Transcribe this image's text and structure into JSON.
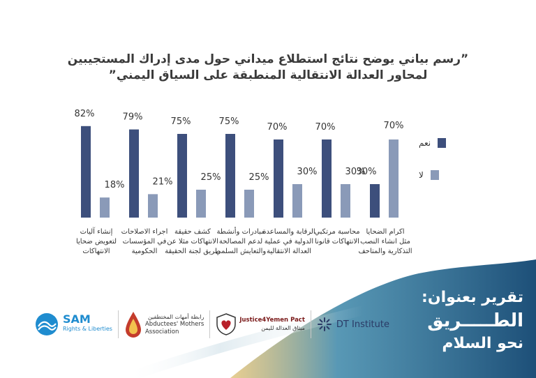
{
  "title_lines": [
    "”رسم بياني يوضح نتائج استطلاع ميداني حول مدى إدراك المستجيبين",
    "لمحاور العدالة الانتقالية المنطبقة على السياق اليمني”"
  ],
  "chart_data": {
    "type": "bar",
    "categories": [
      [
        "إنشاء آليات",
        "لتعويض ضحايا",
        "الانتهاكات"
      ],
      [
        "اجراء الاصلاحات",
        "في المؤسسات",
        "الحكومية"
      ],
      [
        "كشف حقيقة",
        "الانتهاكات مثلا عن",
        "طريق لجنة الحقيقة"
      ],
      [
        "مبادرات وأنشطة",
        "لدعم المصالحة",
        "والتعايش السلمي"
      ],
      [
        "الرقابة والمساعدة",
        "الدولية في عملية",
        "العدالة الانتقالية"
      ],
      [
        "محاسبة مرتكبي",
        "الانتهاكات قانونا"
      ],
      [
        "اكرام الضحايا",
        "مثل انشاء النصب",
        "التذكارية والمتاحف"
      ]
    ],
    "series": [
      {
        "name": "نعم",
        "values": [
          82,
          79,
          75,
          75,
          70,
          70,
          30
        ],
        "labels": [
          "82%",
          "79%",
          "75%",
          "75%",
          "70%",
          "70%",
          "30%"
        ],
        "color": "#3d4f7c"
      },
      {
        "name": "لا",
        "values": [
          18,
          21,
          25,
          25,
          30,
          30,
          70
        ],
        "labels": [
          "18%",
          "21%",
          "25%",
          "25%",
          "30%",
          "30%",
          "70%"
        ],
        "color": "#8a9ab8"
      }
    ],
    "ylim": [
      0,
      100
    ],
    "legend_position": "right"
  },
  "report": {
    "line1": "تقرير بعنوان:",
    "line2": "الطـــــريق",
    "line3": "نحو السلام"
  },
  "logos": {
    "sam": {
      "name": "SAM",
      "tagline": "Rights & Liberties",
      "icon": "sam-wave-icon",
      "color": "#1f8ccf"
    },
    "mothers": {
      "arabic": "رابطة أمهات المختطفين",
      "english_1": "Abductees' Mothers",
      "english_2": "Association",
      "icon": "drop-icon"
    },
    "justice": {
      "english": "Justice4Yemen Pact",
      "arabic": "ميثاق العدالة لليمن",
      "icon": "heart-shield-icon"
    },
    "dt": {
      "name": "DT Institute",
      "icon": "dt-sparkle-icon"
    }
  },
  "colors": {
    "yes": "#3d4f7c",
    "no": "#8a9ab8",
    "wave_blue": "#1f5f86",
    "wave_gold": "#d4a63a"
  }
}
